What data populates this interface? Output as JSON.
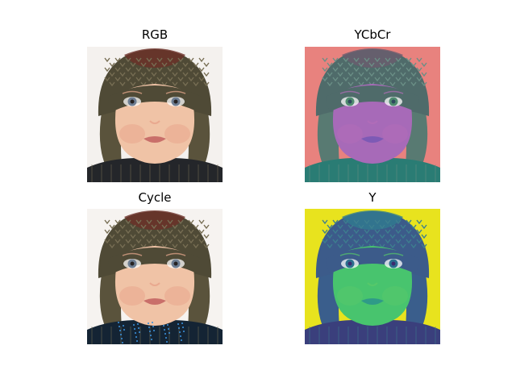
{
  "panels": {
    "rgb": {
      "title": "RGB"
    },
    "ycbcr": {
      "title": "YCbCr"
    },
    "cycle": {
      "title": "Cycle"
    },
    "y": {
      "title": "Y"
    }
  },
  "palettes": {
    "rgb": {
      "bg": "#f4f1ee",
      "hat": "#4f4a36",
      "hatTop": "#6b2f28",
      "face": "#f0c3a6",
      "cheek": "#e9a98f",
      "eye": "#6d7d92",
      "pupil": "#262222",
      "lip": "#c96f6a",
      "sweater": "#24262a",
      "flap": "#5a533c",
      "stitch": "#776e54"
    },
    "ycbcr": {
      "bg": "#e8827e",
      "hat": "#4f6b6a",
      "hatTop": "#6a5c6e",
      "face": "#a76ab8",
      "cheek": "#b06cb8",
      "eye": "#4f8c6f",
      "pupil": "#2f4a5e",
      "lip": "#7d5ab5",
      "sweater": "#2a7c74",
      "flap": "#587a72",
      "stitch": "#6b8f86"
    },
    "cycle": {
      "bg": "#f6f3f0",
      "hat": "#4f4a36",
      "hatTop": "#6b2f28",
      "face": "#f0c3a6",
      "cheek": "#e9a98f",
      "eye": "#6d7d92",
      "pupil": "#262222",
      "lip": "#c96f6a",
      "sweater": "#142434",
      "flap": "#5a533c",
      "stitch": "#776e54"
    },
    "y": {
      "bg": "#e8e31e",
      "hat": "#3c5b8a",
      "hatTop": "#2f7a8e",
      "face": "#48c46e",
      "cheek": "#56c86a",
      "eye": "#2c6f8e",
      "pupil": "#3d2a6e",
      "lip": "#2f9a88",
      "sweater": "#3a3f7c",
      "flap": "#3a5e8c",
      "stitch": "#3d7f8f"
    }
  }
}
